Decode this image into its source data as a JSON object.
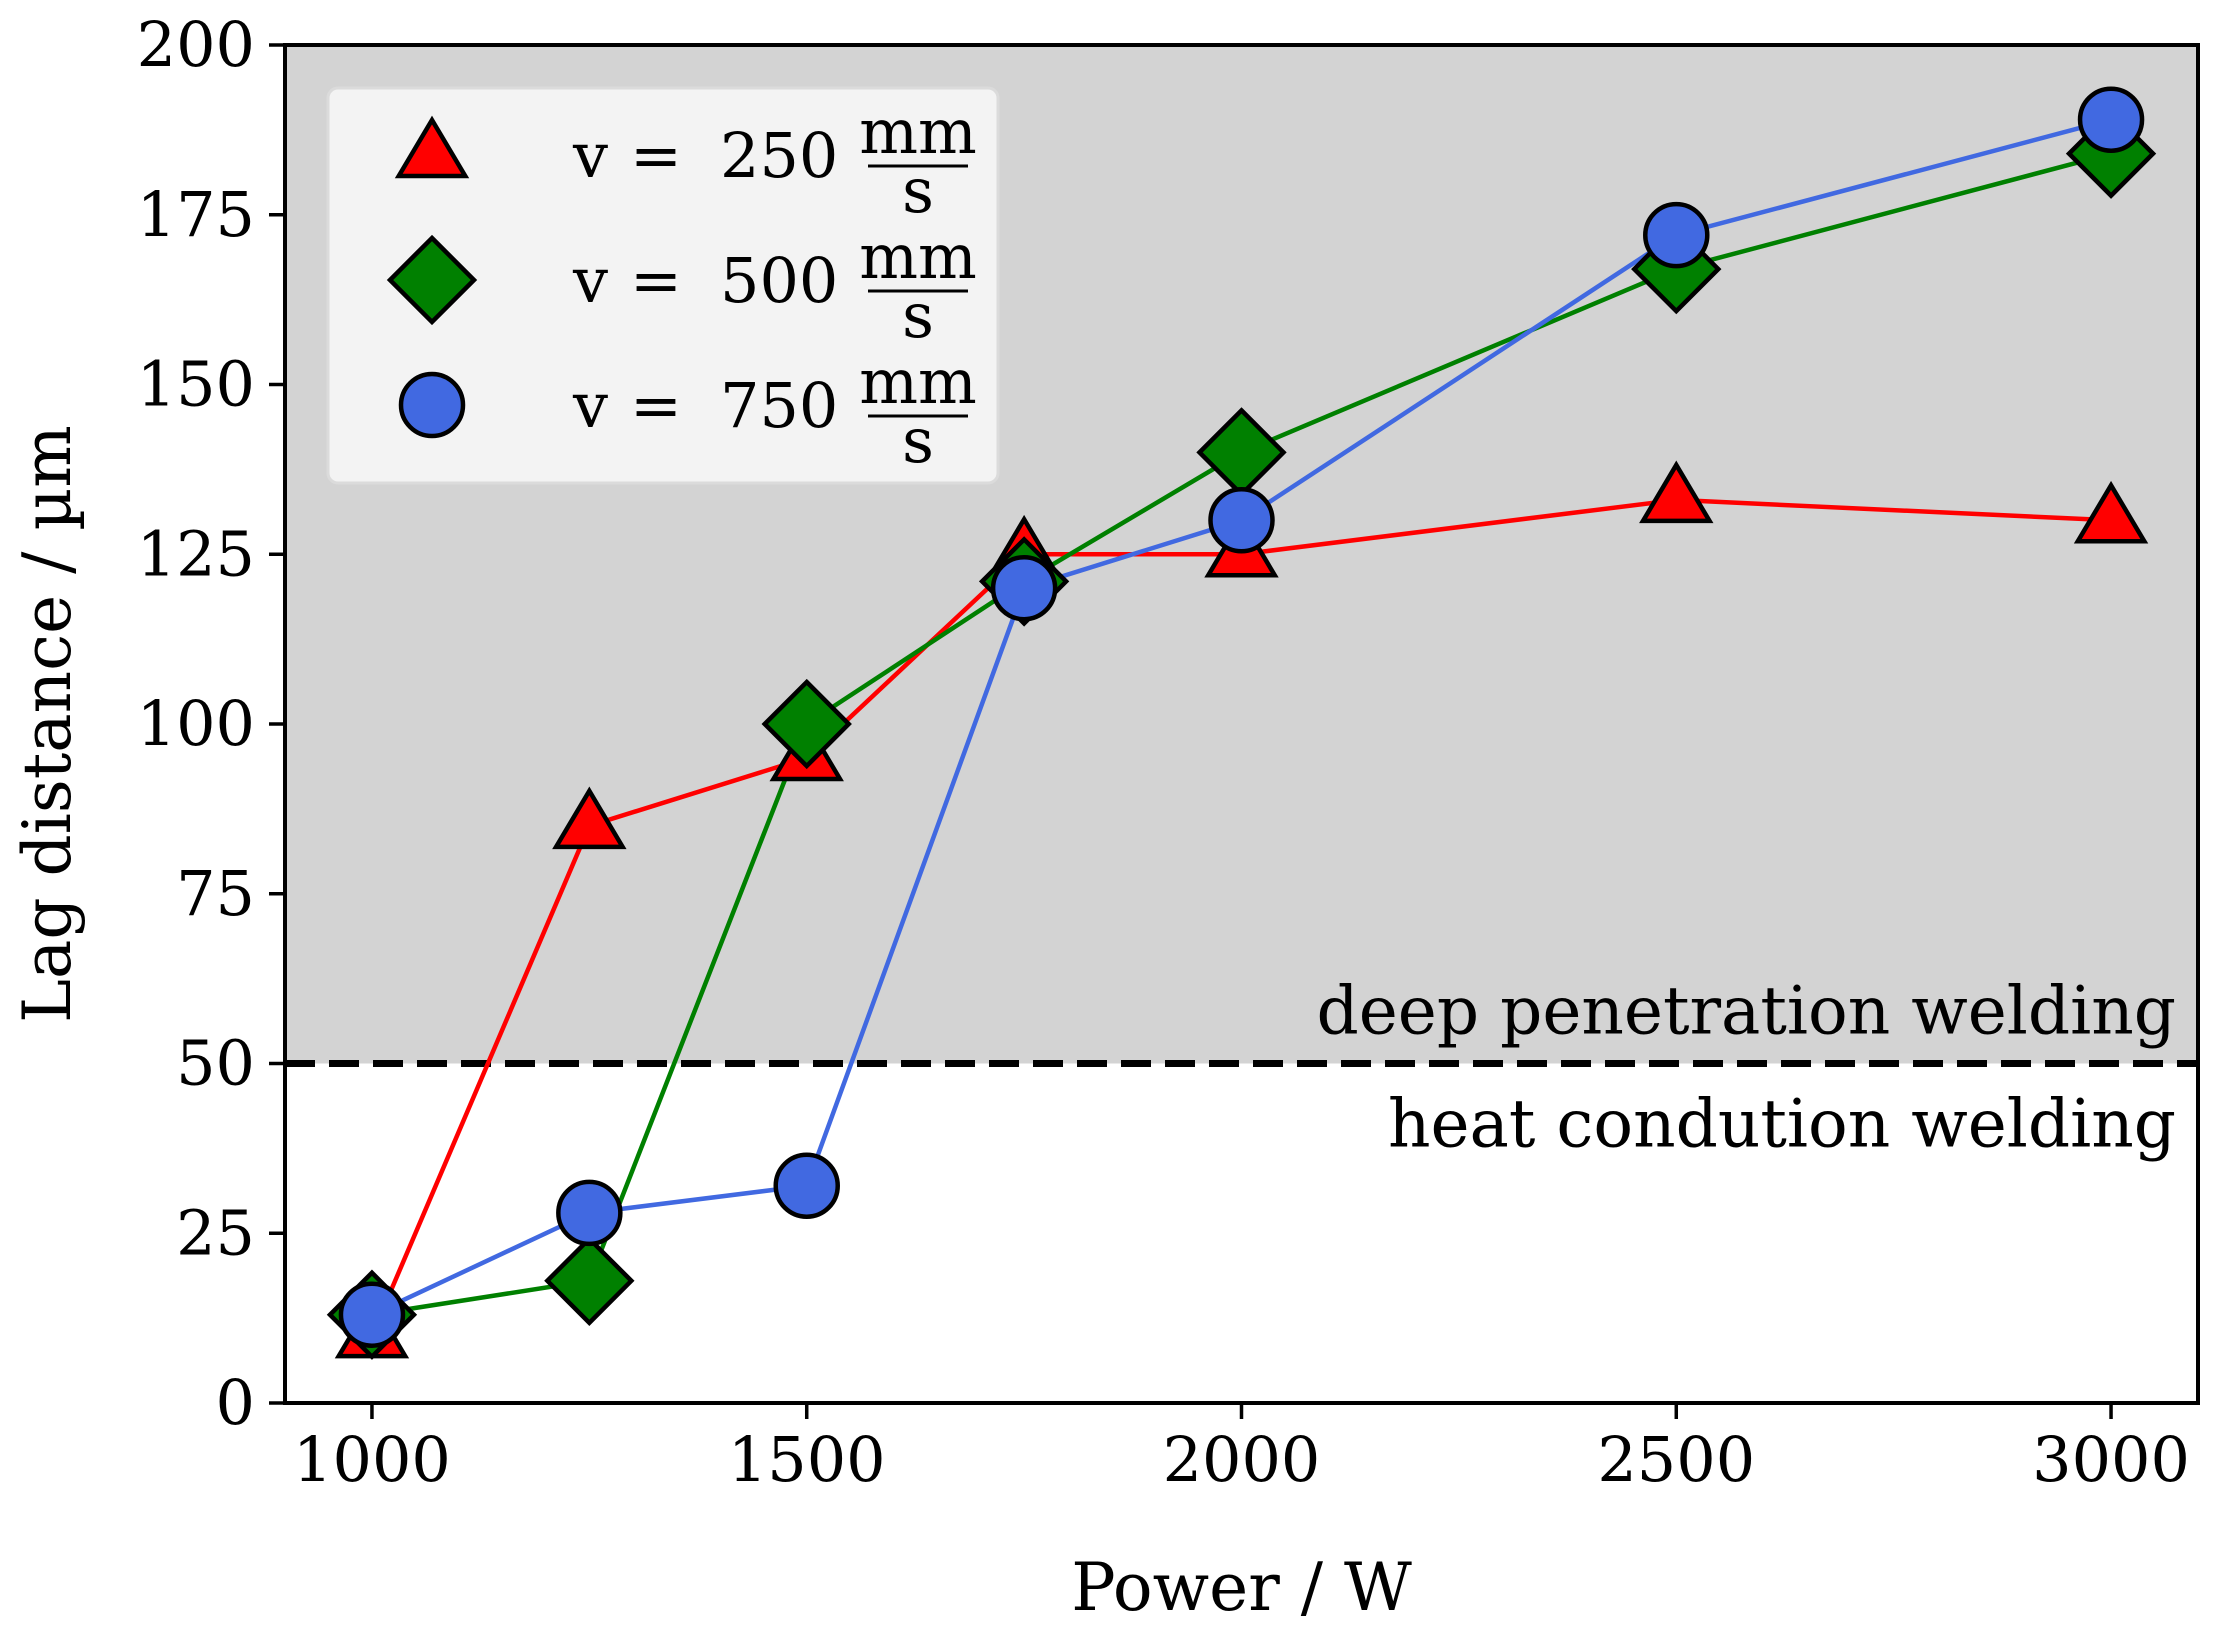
{
  "chart_data": {
    "type": "line",
    "xlabel": "Power / W",
    "ylabel": "Lag distance / µm",
    "xlim": [
      900,
      3100
    ],
    "ylim": [
      0,
      200
    ],
    "xticks": [
      1000,
      1500,
      2000,
      2500,
      3000
    ],
    "yticks": [
      0,
      25,
      50,
      75,
      100,
      125,
      150,
      175,
      200
    ],
    "threshold": {
      "y": 50,
      "style": "dashed",
      "color": "#000000",
      "above_label": "deep penetration welding",
      "below_label": "heat condution welding",
      "above_fill": "#d3d3d3"
    },
    "legend": {
      "placement": "top-left",
      "entries": [
        {
          "math": "v",
          "eq": "=",
          "value": "250",
          "num": "mm",
          "den": "s"
        },
        {
          "math": "v",
          "eq": "=",
          "value": "500",
          "num": "mm",
          "den": "s"
        },
        {
          "math": "v",
          "eq": "=",
          "value": "750",
          "num": "mm",
          "den": "s"
        }
      ]
    },
    "series": [
      {
        "name": "v = 250 mm/s",
        "color": "#ff0000",
        "marker": "triangle",
        "marker_color": "#ff0000",
        "x": [
          1000,
          1250,
          1500,
          1750,
          2000,
          2500,
          3000
        ],
        "y": [
          10,
          85,
          95,
          125,
          125,
          133,
          130
        ]
      },
      {
        "name": "v = 500 mm/s",
        "color": "#008000",
        "marker": "diamond",
        "marker_color": "#008000",
        "x": [
          1000,
          1250,
          1500,
          1750,
          2000,
          2500,
          3000
        ],
        "y": [
          13,
          18,
          100,
          121,
          140,
          167,
          184
        ]
      },
      {
        "name": "v = 750 mm/s",
        "color": "#4169e1",
        "marker": "circle",
        "marker_color": "#4169e1",
        "x": [
          1000,
          1250,
          1500,
          1750,
          2000,
          2500,
          3000
        ],
        "y": [
          13,
          28,
          32,
          120,
          130,
          172,
          189
        ]
      }
    ]
  }
}
